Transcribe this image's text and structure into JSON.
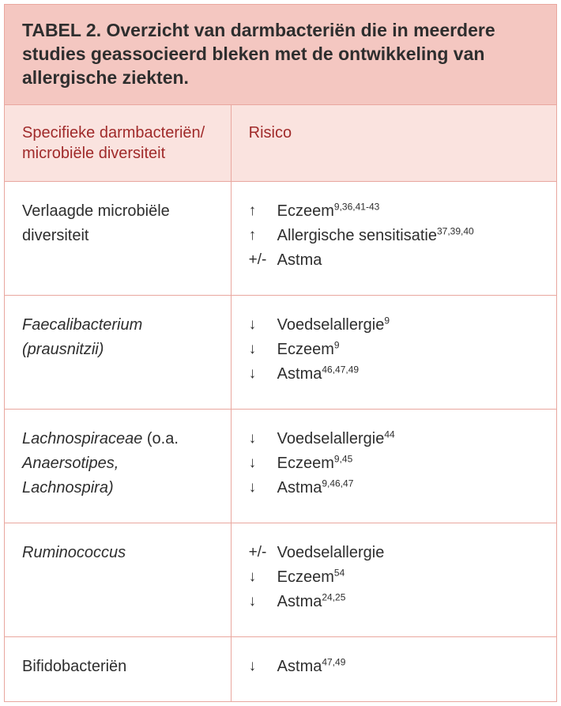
{
  "colors": {
    "caption_bg": "#f4c7c1",
    "header_bg": "#fae3df",
    "header_text": "#a02a2a",
    "border": "#e9a79f",
    "caption_text": "#2e2e2e",
    "body_text": "#2e2e2e"
  },
  "caption": {
    "label": "TABEL 2.",
    "text": "Overzicht van darmbacteriën die in meerdere studies geassocieerd bleken met de ontwikkeling van allergische ziekten."
  },
  "headers": {
    "col0": "Specifieke darmbacteriën/ microbiële diversiteit",
    "col1": "Risico"
  },
  "rows": [
    {
      "name": "Verlaagde microbiële diversiteit",
      "italic": false,
      "risks": [
        {
          "sym": "↑",
          "label": "Eczeem",
          "refs": "9,36,41-43"
        },
        {
          "sym": "↑",
          "label": "Allergische sensitisatie",
          "refs": "37,39,40"
        },
        {
          "sym": "+/-",
          "label": "Astma",
          "refs": ""
        }
      ]
    },
    {
      "name_html": "<span class=\"italic\">Faecalibacterium (prausnitzii)</span>",
      "risks": [
        {
          "sym": "↓",
          "label": "Voedselallergie",
          "refs": "9"
        },
        {
          "sym": "↓",
          "label": "Eczeem",
          "refs": "9"
        },
        {
          "sym": "↓",
          "label": "Astma",
          "refs": "46,47,49"
        }
      ]
    },
    {
      "name_html": "<span class=\"italic\">Lachnospiraceae</span> (o.a. <span class=\"italic\">Anaersotipes, Lachnospira)</span>",
      "risks": [
        {
          "sym": "↓",
          "label": "Voedselallergie",
          "refs": "44"
        },
        {
          "sym": "↓",
          "label": "Eczeem",
          "refs": "9,45"
        },
        {
          "sym": "↓",
          "label": "Astma",
          "refs": "9,46,47"
        }
      ]
    },
    {
      "name_html": "<span class=\"italic\">Ruminococcus</span>",
      "risks": [
        {
          "sym": "+/-",
          "label": "Voedselallergie",
          "refs": ""
        },
        {
          "sym": "↓",
          "label": "Eczeem",
          "refs": "54"
        },
        {
          "sym": "↓",
          "label": "Astma",
          "refs": "24,25"
        }
      ]
    },
    {
      "name": "Bifidobacteriën",
      "italic": false,
      "risks": [
        {
          "sym": "↓",
          "label": "Astma",
          "refs": "47,49"
        }
      ]
    }
  ]
}
